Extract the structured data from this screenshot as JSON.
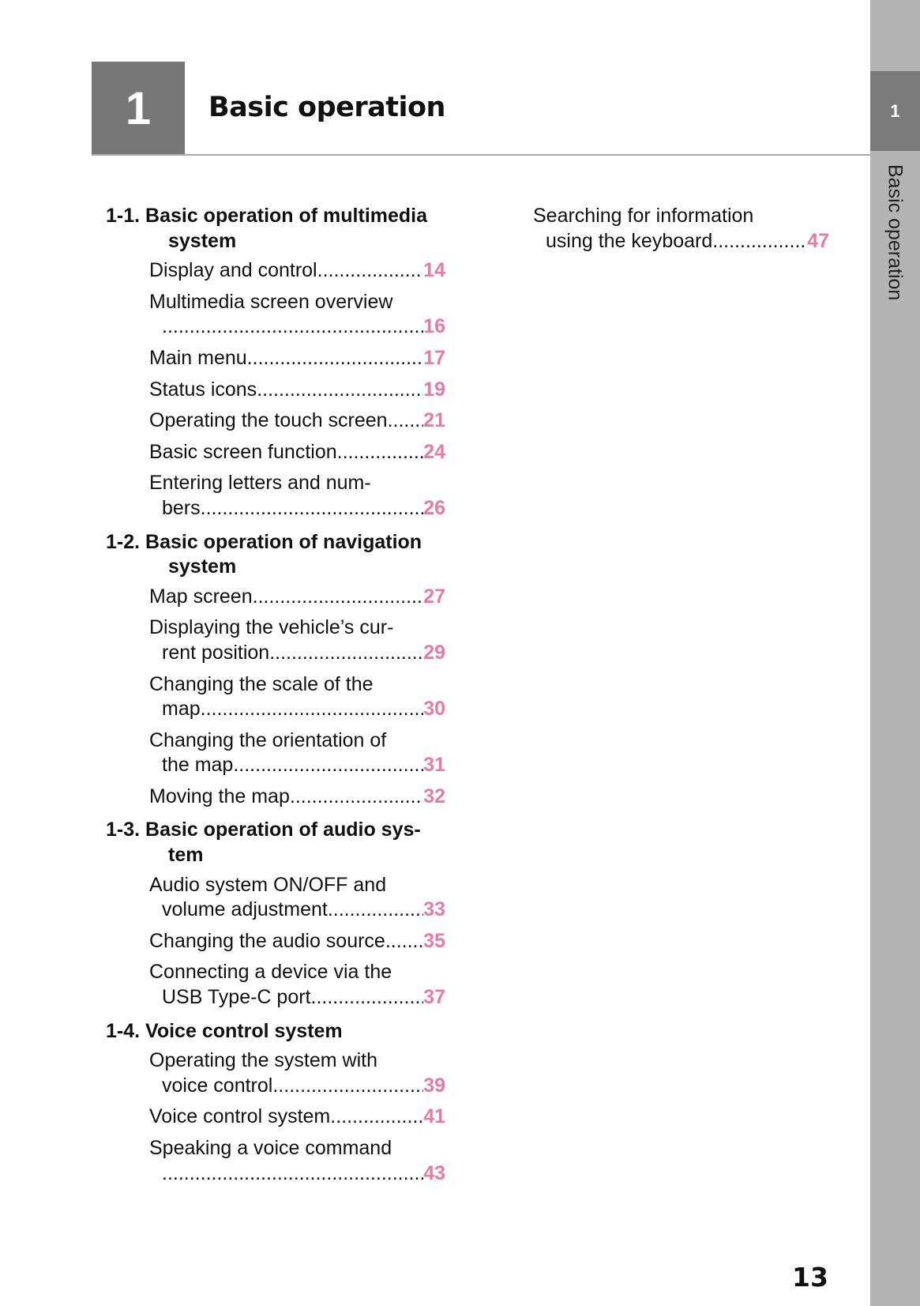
{
  "chapter": {
    "number": "1",
    "title": "Basic operation"
  },
  "side_tab": {
    "number": "1",
    "label": "Basic operation"
  },
  "page_number": "13",
  "colors": {
    "page_ref": "#e67aa5",
    "sidebar": "#b3b3b3",
    "tab": "#7b7b7b"
  },
  "left_column": [
    {
      "type": "heading",
      "line1": "1-1. Basic operation of multimedia",
      "line2": "system"
    },
    {
      "type": "entry",
      "line1": "Display and control",
      "page": "14"
    },
    {
      "type": "entry",
      "line1": "Multimedia screen overview",
      "line2": "",
      "page": "16"
    },
    {
      "type": "entry",
      "line1": "Main menu",
      "page": "17"
    },
    {
      "type": "entry",
      "line1": "Status icons",
      "page": "19"
    },
    {
      "type": "entry",
      "line1": "Operating the touch screen",
      "page": "21"
    },
    {
      "type": "entry",
      "line1": "Basic screen function",
      "page": "24"
    },
    {
      "type": "entry",
      "line1": "Entering letters and num-",
      "line2": "bers",
      "page": "26"
    },
    {
      "type": "heading",
      "line1": "1-2. Basic operation of navigation",
      "line2": "system"
    },
    {
      "type": "entry",
      "line1": "Map screen",
      "page": "27"
    },
    {
      "type": "entry",
      "line1": "Displaying the vehicle’s cur-",
      "line2": "rent position",
      "page": "29"
    },
    {
      "type": "entry",
      "line1": "Changing the scale of the",
      "line2": "map",
      "page": "30"
    },
    {
      "type": "entry",
      "line1": "Changing the orientation of",
      "line2": "the map",
      "page": "31"
    },
    {
      "type": "entry",
      "line1": "Moving the map",
      "page": "32"
    },
    {
      "type": "heading",
      "line1": "1-3. Basic operation of audio sys-",
      "line2": "tem"
    },
    {
      "type": "entry",
      "line1": "Audio system ON/OFF and",
      "line2": "volume adjustment",
      "page": "33"
    },
    {
      "type": "entry",
      "line1": "Changing the audio source",
      "page": "35"
    },
    {
      "type": "entry",
      "line1": "Connecting a device via the",
      "line2": "USB Type-C port",
      "page": "37"
    },
    {
      "type": "heading",
      "line1": "1-4. Voice control system"
    },
    {
      "type": "entry",
      "line1": "Operating the system with",
      "line2": "voice control",
      "page": "39"
    },
    {
      "type": "entry",
      "line1": "Voice control system",
      "page": "41"
    },
    {
      "type": "entry",
      "line1": "Speaking a voice command",
      "line2": "",
      "page": "43"
    }
  ],
  "right_column": [
    {
      "type": "entry",
      "line1": "Searching for information",
      "line2": "using the keyboard",
      "page": "47"
    }
  ]
}
